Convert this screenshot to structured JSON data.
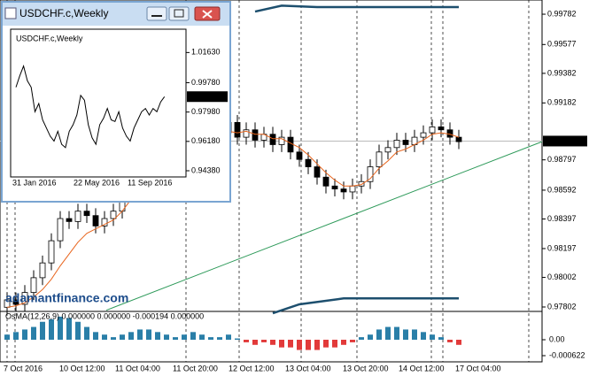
{
  "main": {
    "ylim": [
      0.97772,
      0.99878
    ],
    "price_ticks": [
      {
        "value": 0.99782,
        "label": "0.99782"
      },
      {
        "value": 0.99577,
        "label": "0.99577"
      },
      {
        "value": 0.99382,
        "label": "0.99382"
      },
      {
        "value": 0.99182,
        "label": "0.99182"
      },
      {
        "value": 0.98797,
        "label": "0.98797"
      },
      {
        "value": 0.98592,
        "label": "0.98592"
      },
      {
        "value": 0.98397,
        "label": "0.98397"
      },
      {
        "value": 0.98197,
        "label": "0.98197"
      },
      {
        "value": 0.98002,
        "label": "0.98002"
      },
      {
        "value": 0.97802,
        "label": "0.97802"
      }
    ],
    "current_price": {
      "value": 0.98924,
      "label": "0.98924"
    },
    "time_labels": [
      "7 Oct 2016",
      "10 Oct 12:00",
      "11 Oct 04:00",
      "11 Oct 20:00",
      "12 Oct 12:00",
      "13 Oct 04:00",
      "13 Oct 20:00",
      "14 Oct 12:00",
      "17 Oct 04:00"
    ],
    "ohlc": [
      [
        0.978,
        0.979,
        0.9775,
        0.9785
      ],
      [
        0.9785,
        0.979,
        0.9777,
        0.9782
      ],
      [
        0.9782,
        0.9795,
        0.9777,
        0.979
      ],
      [
        0.979,
        0.9805,
        0.9785,
        0.98
      ],
      [
        0.98,
        0.9815,
        0.9795,
        0.981
      ],
      [
        0.981,
        0.983,
        0.9805,
        0.9825
      ],
      [
        0.9825,
        0.9845,
        0.982,
        0.984
      ],
      [
        0.984,
        0.9845,
        0.9833,
        0.9838
      ],
      [
        0.9838,
        0.985,
        0.9833,
        0.9845
      ],
      [
        0.9845,
        0.985,
        0.9837,
        0.9842
      ],
      [
        0.9842,
        0.9847,
        0.983,
        0.9835
      ],
      [
        0.9835,
        0.9845,
        0.983,
        0.984
      ],
      [
        0.984,
        0.985,
        0.9835,
        0.9845
      ],
      [
        0.9845,
        0.9865,
        0.984,
        0.986
      ],
      [
        0.986,
        0.988,
        0.9855,
        0.9875
      ],
      [
        0.9875,
        0.989,
        0.987,
        0.9885
      ],
      [
        0.9885,
        0.99,
        0.988,
        0.9895
      ],
      [
        0.9895,
        0.9905,
        0.989,
        0.99
      ],
      [
        0.99,
        0.991,
        0.9895,
        0.9905
      ],
      [
        0.9905,
        0.991,
        0.9893,
        0.9898
      ],
      [
        0.9898,
        0.9907,
        0.9893,
        0.9902
      ],
      [
        0.9902,
        0.9907,
        0.989,
        0.9895
      ],
      [
        0.9895,
        0.9905,
        0.989,
        0.99
      ],
      [
        0.99,
        0.9905,
        0.9885,
        0.989
      ],
      [
        0.989,
        0.9903,
        0.9885,
        0.9898
      ],
      [
        0.9898,
        0.991,
        0.9893,
        0.9905
      ],
      [
        0.9905,
        0.991,
        0.989,
        0.9895
      ],
      [
        0.9895,
        0.9905,
        0.989,
        0.99
      ],
      [
        0.99,
        0.9905,
        0.9888,
        0.9893
      ],
      [
        0.9893,
        0.9902,
        0.9888,
        0.9897
      ],
      [
        0.9897,
        0.9902,
        0.9885,
        0.989
      ],
      [
        0.989,
        0.99,
        0.9885,
        0.9895
      ],
      [
        0.9895,
        0.99,
        0.988,
        0.9885
      ],
      [
        0.9885,
        0.989,
        0.9875,
        0.988
      ],
      [
        0.988,
        0.9885,
        0.987,
        0.9875
      ],
      [
        0.9875,
        0.988,
        0.9863,
        0.9868
      ],
      [
        0.9868,
        0.9873,
        0.9857,
        0.9862
      ],
      [
        0.9862,
        0.9867,
        0.9855,
        0.986
      ],
      [
        0.986,
        0.9865,
        0.9853,
        0.9858
      ],
      [
        0.9858,
        0.9867,
        0.9853,
        0.9862
      ],
      [
        0.9862,
        0.987,
        0.9857,
        0.9865
      ],
      [
        0.9865,
        0.988,
        0.986,
        0.9875
      ],
      [
        0.9875,
        0.989,
        0.987,
        0.9885
      ],
      [
        0.9885,
        0.9893,
        0.988,
        0.9888
      ],
      [
        0.9888,
        0.9898,
        0.9883,
        0.9893
      ],
      [
        0.9893,
        0.9898,
        0.9885,
        0.989
      ],
      [
        0.989,
        0.99,
        0.9885,
        0.9895
      ],
      [
        0.9895,
        0.9903,
        0.989,
        0.9898
      ],
      [
        0.9898,
        0.9907,
        0.9893,
        0.9902
      ],
      [
        0.9902,
        0.9907,
        0.9895,
        0.99
      ],
      [
        0.99,
        0.9905,
        0.989,
        0.9895
      ],
      [
        0.9895,
        0.99,
        0.9887,
        0.9892
      ]
    ],
    "ma": [
      0.978,
      0.9781,
      0.9783,
      0.9787,
      0.9792,
      0.9799,
      0.9808,
      0.9816,
      0.9824,
      0.983,
      0.9833,
      0.9836,
      0.9839,
      0.9845,
      0.9853,
      0.9862,
      0.9871,
      0.9879,
      0.9887,
      0.9891,
      0.9895,
      0.9896,
      0.9898,
      0.9896,
      0.9897,
      0.9899,
      0.9898,
      0.9899,
      0.9897,
      0.9897,
      0.9894,
      0.9894,
      0.9891,
      0.9888,
      0.9883,
      0.9877,
      0.9871,
      0.9866,
      0.9862,
      0.9862,
      0.9863,
      0.9867,
      0.9874,
      0.9879,
      0.9885,
      0.9887,
      0.989,
      0.9893,
      0.9897,
      0.9898,
      0.9897,
      0.9895
    ],
    "ma_color": "#e8641c",
    "upper_band": {
      "x": [
        28,
        31,
        35,
        40,
        45,
        51
      ],
      "values": [
        0.998,
        0.9984,
        0.9983,
        0.9983,
        0.9983,
        0.9983
      ]
    },
    "lower_band": {
      "x": [
        30,
        33,
        38,
        45,
        51
      ],
      "values": [
        0.9776,
        0.9782,
        0.9786,
        0.9786,
        0.9786
      ]
    },
    "band_color": "#1d4f6e",
    "trend_line": {
      "x": [
        11.2,
        60.4
      ],
      "values": [
        0.9778,
        0.9892
      ]
    },
    "trend_color": "#2e9a5a"
  },
  "osma": {
    "label": "OsMA(12,26,9) 0.000000 0.000000 -0.000194 0.000000",
    "ylim": [
      -0.000829,
      0.001106
    ],
    "ticks": [
      {
        "value": 0,
        "label": "0.00"
      },
      {
        "value": -0.000622,
        "label": "-0.000622"
      }
    ],
    "positive_color": "#2a7fa8",
    "negative_color": "#e23a3a",
    "values": [
      0.0002,
      0.0003,
      0.0004,
      0.0005,
      0.0007,
      0.0008,
      0.0009,
      0.00085,
      0.0007,
      0.0005,
      0.0003,
      0.0002,
      0.0001,
      0.0002,
      0.0003,
      0.0004,
      0.0004,
      0.0003,
      0.0002,
      0.0001,
      0.0002,
      0.0003,
      0.0002,
      0.0001,
      0.0001,
      0.0002,
      5e-05,
      -0.0001,
      -0.0002,
      -0.0001,
      -0.0002,
      -0.0003,
      -0.0003,
      -0.0004,
      -0.0004,
      -0.0004,
      -0.0003,
      -0.0003,
      -0.0002,
      -0.0001,
      0.0001,
      0.0002,
      0.0004,
      0.0005,
      0.0005,
      0.0004,
      0.0004,
      0.0003,
      0.0002,
      0.0001,
      -0.0001,
      -0.0002
    ]
  },
  "window": {
    "title": "USDCHF.c,Weekly",
    "chart_label": "USDCHF.c,Weekly",
    "ylim": [
      0.94,
      1.0306
    ],
    "price_ticks": [
      {
        "value": 1.0163,
        "label": "1.01630"
      },
      {
        "value": 0.9978,
        "label": "0.99780"
      },
      {
        "value": 0.9798,
        "label": "0.97980"
      },
      {
        "value": 0.9618,
        "label": "0.96180"
      },
      {
        "value": 0.9438,
        "label": "0.94380"
      }
    ],
    "current_price": {
      "value": 0.98924,
      "label": "0.98924"
    },
    "time_labels": [
      "31 Jan 2016",
      "22 May 2016",
      "11 Sep 2016"
    ],
    "closes": [
      0.995,
      1.002,
      1.008,
      0.999,
      0.995,
      0.98,
      0.985,
      0.975,
      0.97,
      0.965,
      0.962,
      0.968,
      0.96,
      0.958,
      0.968,
      0.972,
      0.978,
      0.99,
      0.987,
      0.972,
      0.964,
      0.96,
      0.972,
      0.976,
      0.982,
      0.975,
      0.974,
      0.98,
      0.97,
      0.965,
      0.962,
      0.97,
      0.975,
      0.98,
      0.982,
      0.978,
      0.982,
      0.98,
      0.986,
      0.9892
    ]
  },
  "watermark": "adamantfinance.com"
}
